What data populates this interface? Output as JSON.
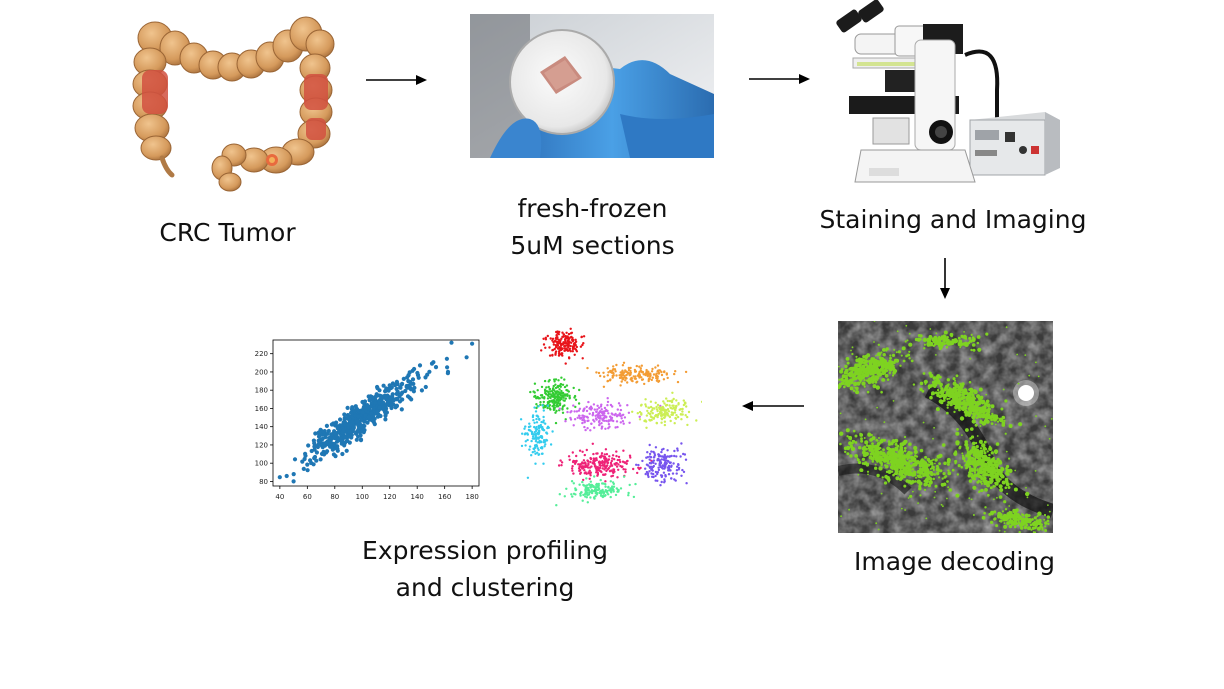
{
  "steps": {
    "tumor": {
      "label": "CRC Tumor"
    },
    "sections": {
      "label_line1": "fresh-frozen",
      "label_line2": "5uM sections"
    },
    "imaging": {
      "label": "Staining and Imaging"
    },
    "decoding": {
      "label": "Image decoding"
    },
    "profiling": {
      "label_line1": "Expression profiling",
      "label_line2": "and clustering"
    }
  },
  "colors": {
    "arrow": "#000000",
    "colon": "#d9a36b",
    "tumor_spot": "#d1503f",
    "glove": "#3c8fd6",
    "scatter_point": "#1f77b4",
    "decode_signal": "#7ed321",
    "cluster_colors": [
      "#e8141a",
      "#f39c34",
      "#33cc33",
      "#cc66ee",
      "#ccee55",
      "#33ccee",
      "#ee2277",
      "#7755ee",
      "#55ee99"
    ]
  },
  "chart_data": {
    "type": "scatter",
    "title": "",
    "xlabel": "",
    "ylabel": "",
    "x_ticks": [
      "40",
      "60",
      "80",
      "100",
      "120",
      "140",
      "160",
      "180"
    ],
    "y_ticks": [
      "80",
      "100",
      "120",
      "140",
      "160",
      "180",
      "200",
      "220"
    ],
    "xlim": [
      35,
      185
    ],
    "ylim": [
      75,
      235
    ],
    "trend": {
      "slope": 1.0,
      "intercept": 50,
      "spread_sd": 9
    },
    "n_points": 520,
    "outliers": [
      [
        165,
        232
      ],
      [
        180,
        231
      ],
      [
        176,
        216
      ],
      [
        45,
        86
      ],
      [
        50,
        80
      ]
    ],
    "color": "#1f77b4"
  }
}
